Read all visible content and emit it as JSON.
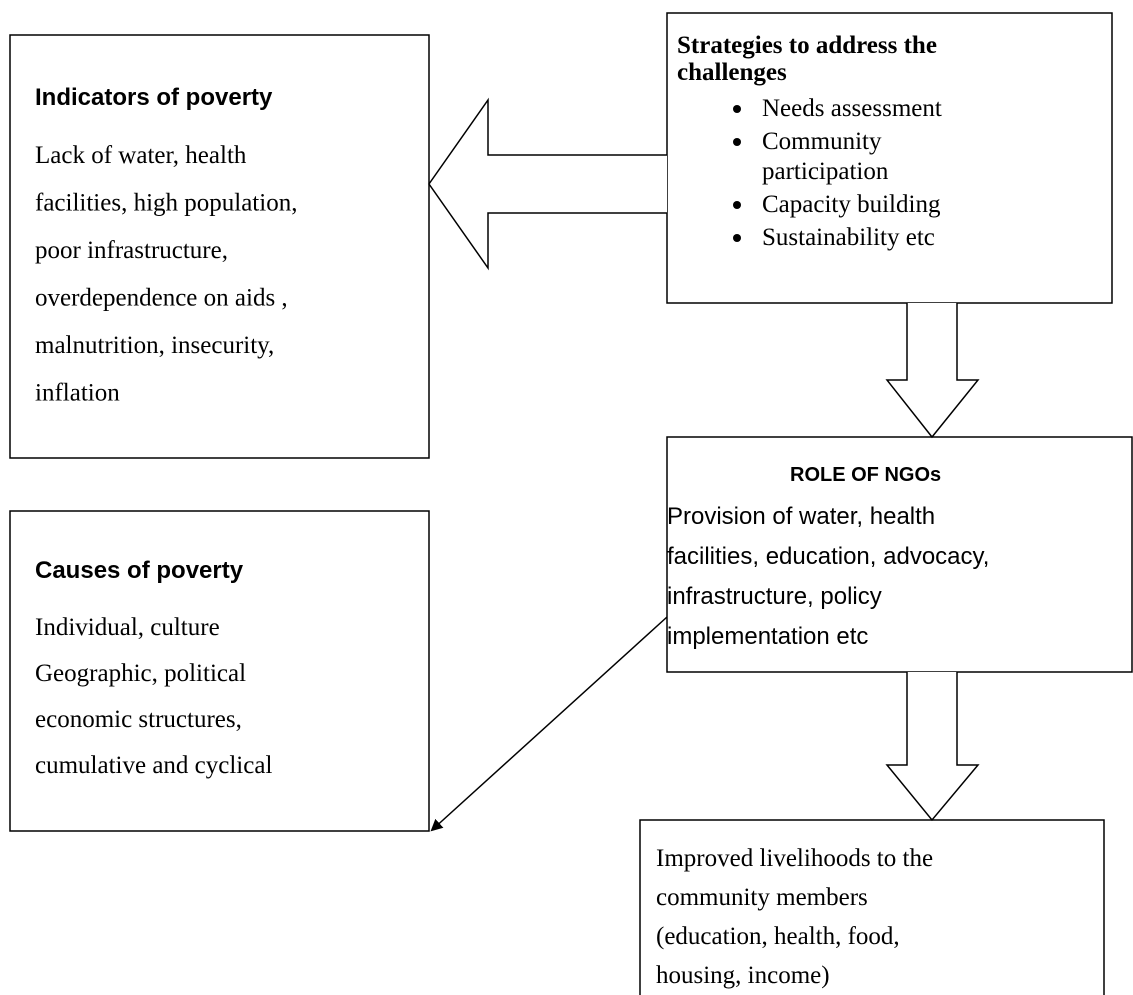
{
  "indicators": {
    "title": "Indicators of poverty",
    "lines": [
      "Lack of water, health",
      "facilities, high population,",
      "poor infrastructure,",
      "overdependence on aids ,",
      "malnutrition, insecurity,",
      "inflation"
    ]
  },
  "strategies": {
    "title": [
      "Strategies to address the",
      "challenges"
    ],
    "bullets": [
      [
        "Needs assessment"
      ],
      [
        "Community",
        "participation"
      ],
      [
        "Capacity building"
      ],
      [
        "Sustainability etc"
      ]
    ]
  },
  "ngos": {
    "title": "ROLE OF NGOs",
    "lines": [
      "Provision of water, health",
      "facilities, education, advocacy,",
      "infrastructure, policy",
      "implementation etc"
    ]
  },
  "causes": {
    "title": "Causes of poverty",
    "lines": [
      "Individual, culture",
      "Geographic, political",
      "economic structures,",
      "cumulative and cyclical"
    ]
  },
  "livelihoods": {
    "lines": [
      "Improved livelihoods to the",
      "community members",
      "(education, health, food,",
      "housing, income)"
    ]
  }
}
